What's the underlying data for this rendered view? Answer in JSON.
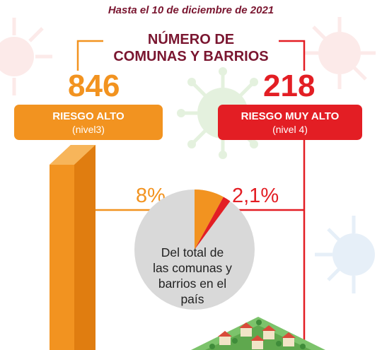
{
  "header": {
    "date_note": "Hasta el 10 de diciembre de 2021",
    "title_line1": "NÚMERO DE",
    "title_line2": "COMUNAS Y BARRIOS"
  },
  "high_risk": {
    "count": "846",
    "label": "RIESGO ALTO",
    "level": "(nivel3)",
    "percent_text": "8%",
    "percent": 8,
    "color": "#f29320"
  },
  "very_high_risk": {
    "count": "218",
    "label": "RIESGO MUY ALTO",
    "level": "(nivel 4)",
    "percent_text": "2,1%",
    "percent": 2.1,
    "color": "#e31e24"
  },
  "pie_caption": {
    "line1": "Del total de",
    "line2": "las comunas y",
    "line3": "barrios en el",
    "line4": "país"
  },
  "colors": {
    "title": "#7a1630",
    "pie_base": "#d9d9d9",
    "bracket": "#f29320"
  },
  "icons": [
    "virus-icon",
    "city-illustration"
  ]
}
